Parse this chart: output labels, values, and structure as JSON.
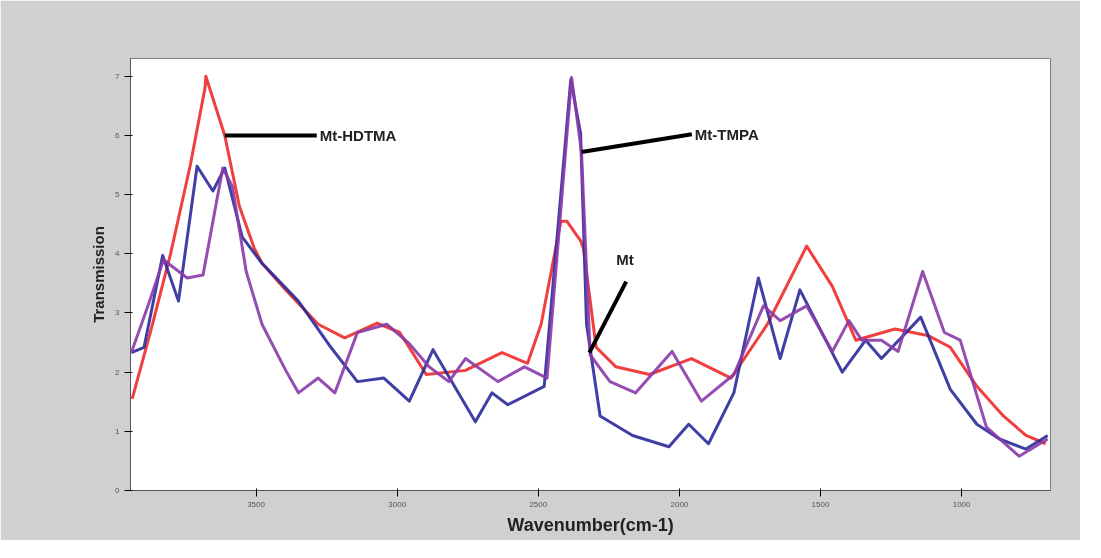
{
  "chart_data": {
    "type": "line",
    "xlabel": "Wavenumber(cm-1)",
    "ylabel": "Transmission",
    "xlim": [
      3945,
      685
    ],
    "ylim": [
      0,
      7.3
    ],
    "xticks": [
      3500,
      3000,
      2500,
      2000,
      1500,
      1000
    ],
    "yticks": [
      0,
      1,
      2,
      3,
      4,
      5,
      6,
      7
    ],
    "grid": false,
    "marker": "none",
    "line_style": "solid",
    "series": [
      {
        "color": "#ee2a2a",
        "x": [
          3939,
          3873,
          3803,
          3733,
          3681,
          3678,
          3611,
          3559,
          3507,
          3479,
          3395,
          3280,
          3186,
          3071,
          2991,
          2897,
          2758,
          2629,
          2538,
          2490,
          2420,
          2399,
          2350,
          2340,
          2295,
          2225,
          2106,
          1957,
          1817,
          1688,
          1549,
          1458,
          1375,
          1236,
          1120,
          1040,
          946,
          852,
          772,
          702
        ],
        "values": [
          1.55,
          2.7,
          4.0,
          5.5,
          6.8,
          7.0,
          6.0,
          4.8,
          4.1,
          3.84,
          3.39,
          2.81,
          2.58,
          2.83,
          2.67,
          1.96,
          2.03,
          2.33,
          2.15,
          2.81,
          4.55,
          4.55,
          4.22,
          4.09,
          2.42,
          2.09,
          1.96,
          2.23,
          1.9,
          2.81,
          4.13,
          3.45,
          2.54,
          2.73,
          2.62,
          2.42,
          1.76,
          1.26,
          0.93,
          0.79
        ]
      },
      {
        "color": "#2a2a9a",
        "x": [
          3942,
          3897,
          3831,
          3775,
          3709,
          3653,
          3611,
          3549,
          3479,
          3350,
          3235,
          3141,
          3047,
          2957,
          2873,
          2723,
          2664,
          2608,
          2479,
          2385,
          2350,
          2329,
          2281,
          2166,
          2037,
          1967,
          1897,
          1807,
          1720,
          1643,
          1573,
          1423,
          1340,
          1284,
          1145,
          1040,
          946,
          866,
          772,
          695
        ],
        "values": [
          2.33,
          2.42,
          3.97,
          3.2,
          5.48,
          5.06,
          5.45,
          4.28,
          3.84,
          3.2,
          2.42,
          1.84,
          1.9,
          1.51,
          2.38,
          1.16,
          1.65,
          1.45,
          1.76,
          6.94,
          6.03,
          2.81,
          1.26,
          0.93,
          0.74,
          1.12,
          0.79,
          1.65,
          3.59,
          2.23,
          3.39,
          2.0,
          2.54,
          2.23,
          2.93,
          1.71,
          1.12,
          0.87,
          0.7,
          0.93
        ]
      },
      {
        "color": "#8a3aaa",
        "x": [
          3942,
          3883,
          3828,
          3744,
          3688,
          3618,
          3584,
          3535,
          3479,
          3395,
          3350,
          3280,
          3221,
          3141,
          3037,
          2957,
          2887,
          2817,
          2758,
          2643,
          2549,
          2469,
          2420,
          2382,
          2347,
          2316,
          2246,
          2155,
          2026,
          1922,
          1807,
          1702,
          1643,
          1549,
          1458,
          1399,
          1354,
          1284,
          1225,
          1138,
          1061,
          1005,
          912,
          796,
          695
        ],
        "values": [
          2.33,
          3.12,
          3.9,
          3.59,
          3.64,
          5.45,
          5.14,
          3.7,
          2.81,
          2.03,
          1.65,
          1.9,
          1.65,
          2.67,
          2.81,
          2.48,
          2.09,
          1.84,
          2.23,
          1.84,
          2.09,
          1.9,
          4.75,
          6.98,
          5.72,
          2.29,
          1.84,
          1.65,
          2.35,
          1.51,
          1.96,
          3.12,
          2.87,
          3.12,
          2.35,
          2.87,
          2.54,
          2.54,
          2.35,
          3.7,
          2.67,
          2.54,
          1.07,
          0.58,
          0.87
        ]
      }
    ],
    "annotations": [
      {
        "text": "Mt-HDTMA",
        "x": 3611,
        "y": 6.0
      },
      {
        "text": "Mt-TMPA",
        "x": 2347,
        "y": 5.72
      },
      {
        "text": "Mt",
        "x": 2319,
        "y": 2.33
      }
    ]
  }
}
